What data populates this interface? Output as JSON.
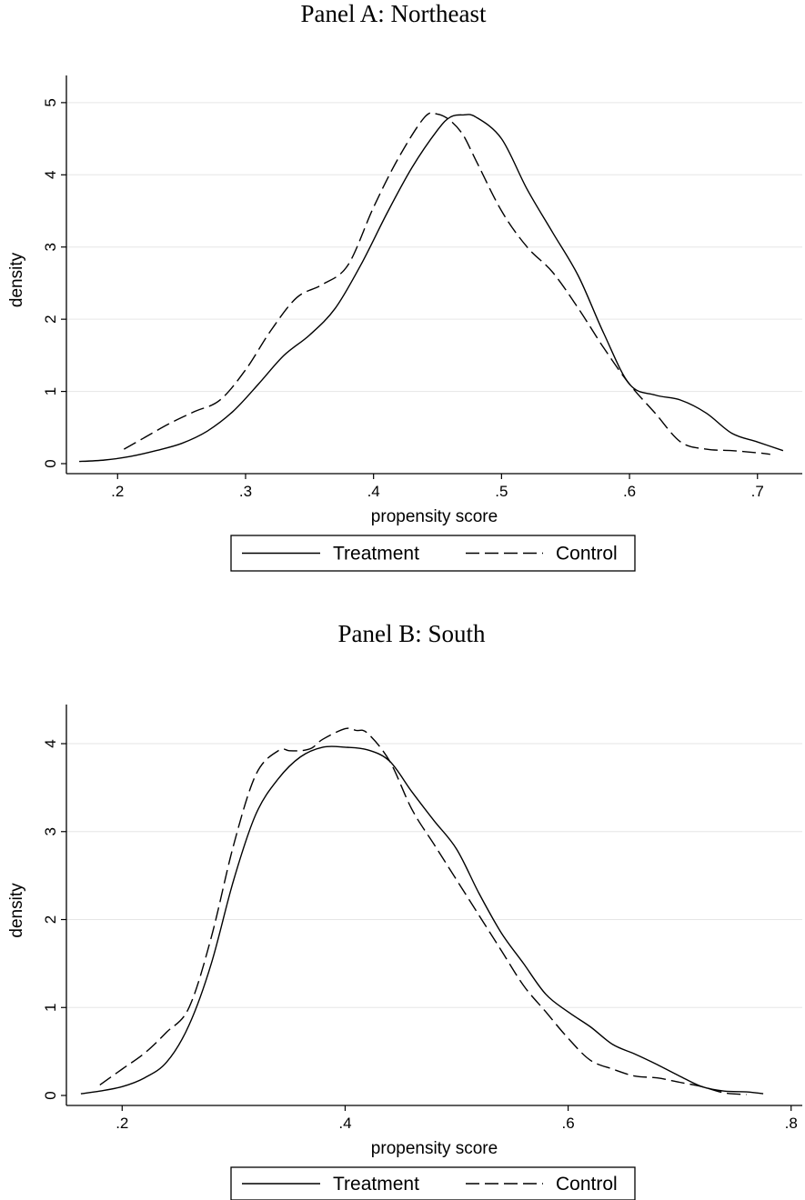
{
  "colors": {
    "line": "#000000",
    "grid": "#e6e6e6",
    "background": "#ffffff"
  },
  "chart_data": [
    {
      "type": "line",
      "title": "Panel A: Northeast",
      "xlabel": "propensity score",
      "ylabel": "density",
      "xlim": [
        0.16,
        0.735
      ],
      "ylim": [
        0,
        5.2
      ],
      "xticks": [
        0.2,
        0.3,
        0.4,
        0.5,
        0.6,
        0.7
      ],
      "xtick_labels": [
        ".2",
        ".3",
        ".4",
        ".5",
        ".6",
        ".7"
      ],
      "yticks": [
        0,
        1,
        2,
        3,
        4,
        5
      ],
      "ytick_labels": [
        "0",
        "1",
        "2",
        "3",
        "4",
        "5"
      ],
      "grid": true,
      "legend_position": "bottom",
      "series": [
        {
          "name": "Treatment",
          "style": "solid",
          "x": [
            0.17,
            0.19,
            0.21,
            0.23,
            0.25,
            0.27,
            0.29,
            0.31,
            0.33,
            0.35,
            0.37,
            0.39,
            0.41,
            0.43,
            0.45,
            0.46,
            0.47,
            0.48,
            0.5,
            0.52,
            0.54,
            0.56,
            0.58,
            0.6,
            0.62,
            0.64,
            0.66,
            0.68,
            0.7,
            0.72
          ],
          "y": [
            0.03,
            0.05,
            0.1,
            0.18,
            0.28,
            0.45,
            0.72,
            1.1,
            1.5,
            1.78,
            2.15,
            2.75,
            3.45,
            4.1,
            4.62,
            4.8,
            4.83,
            4.8,
            4.5,
            3.8,
            3.2,
            2.6,
            1.8,
            1.1,
            0.95,
            0.88,
            0.7,
            0.42,
            0.3,
            0.18
          ]
        },
        {
          "name": "Control",
          "style": "dashed",
          "x": [
            0.205,
            0.22,
            0.24,
            0.26,
            0.28,
            0.3,
            0.32,
            0.34,
            0.36,
            0.38,
            0.4,
            0.42,
            0.44,
            0.45,
            0.46,
            0.47,
            0.48,
            0.5,
            0.52,
            0.54,
            0.56,
            0.58,
            0.6,
            0.62,
            0.64,
            0.66,
            0.68,
            0.7,
            0.71
          ],
          "y": [
            0.2,
            0.35,
            0.55,
            0.72,
            0.88,
            1.3,
            1.85,
            2.3,
            2.48,
            2.75,
            3.55,
            4.25,
            4.8,
            4.84,
            4.75,
            4.55,
            4.2,
            3.5,
            3.0,
            2.65,
            2.15,
            1.6,
            1.1,
            0.7,
            0.3,
            0.2,
            0.18,
            0.15,
            0.13
          ]
        }
      ]
    },
    {
      "type": "line",
      "title": "Panel B: South",
      "xlabel": "propensity score",
      "ylabel": "density",
      "xlim": [
        0.15,
        0.81
      ],
      "ylim": [
        0,
        4.3
      ],
      "xticks": [
        0.2,
        0.4,
        0.6,
        0.8
      ],
      "xtick_labels": [
        ".2",
        ".4",
        ".6",
        ".8"
      ],
      "yticks": [
        0,
        1,
        2,
        3,
        4
      ],
      "ytick_labels": [
        "0",
        "1",
        "2",
        "3",
        "4"
      ],
      "grid": true,
      "legend_position": "bottom",
      "series": [
        {
          "name": "Treatment",
          "style": "solid",
          "x": [
            0.163,
            0.18,
            0.2,
            0.22,
            0.24,
            0.26,
            0.28,
            0.3,
            0.32,
            0.34,
            0.36,
            0.38,
            0.4,
            0.42,
            0.44,
            0.46,
            0.48,
            0.5,
            0.52,
            0.54,
            0.56,
            0.58,
            0.6,
            0.62,
            0.64,
            0.66,
            0.68,
            0.7,
            0.72,
            0.74,
            0.76,
            0.775
          ],
          "y": [
            0.02,
            0.05,
            0.1,
            0.2,
            0.38,
            0.8,
            1.5,
            2.45,
            3.2,
            3.6,
            3.85,
            3.96,
            3.96,
            3.93,
            3.8,
            3.45,
            3.12,
            2.8,
            2.3,
            1.85,
            1.5,
            1.15,
            0.95,
            0.78,
            0.58,
            0.47,
            0.35,
            0.22,
            0.1,
            0.05,
            0.04,
            0.02
          ]
        },
        {
          "name": "Control",
          "style": "dashed",
          "x": [
            0.18,
            0.2,
            0.22,
            0.24,
            0.26,
            0.28,
            0.3,
            0.32,
            0.34,
            0.35,
            0.36,
            0.37,
            0.38,
            0.4,
            0.41,
            0.42,
            0.44,
            0.46,
            0.48,
            0.5,
            0.52,
            0.54,
            0.56,
            0.58,
            0.6,
            0.62,
            0.64,
            0.66,
            0.68,
            0.7,
            0.72,
            0.74,
            0.76
          ],
          "y": [
            0.12,
            0.3,
            0.48,
            0.72,
            1.0,
            1.8,
            2.85,
            3.65,
            3.92,
            3.92,
            3.92,
            3.95,
            4.05,
            4.17,
            4.15,
            4.12,
            3.8,
            3.25,
            2.85,
            2.45,
            2.05,
            1.65,
            1.25,
            0.95,
            0.65,
            0.4,
            0.3,
            0.22,
            0.2,
            0.15,
            0.1,
            0.03,
            0.01
          ]
        }
      ]
    }
  ]
}
